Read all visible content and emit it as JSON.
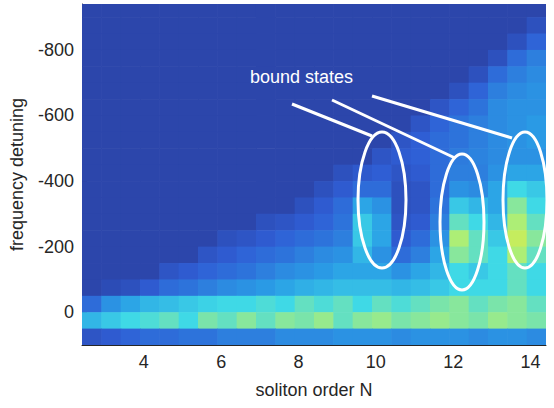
{
  "chart_data": {
    "type": "heatmap",
    "xlabel": "soliton order N",
    "ylabel": "frequency detuning",
    "annotation": "bound states",
    "x": [
      2.65,
      3.15,
      3.65,
      4.15,
      4.65,
      5.15,
      5.65,
      6.15,
      6.65,
      7.15,
      7.65,
      8.15,
      8.65,
      9.15,
      9.65,
      10.15,
      10.65,
      11.15,
      11.65,
      12.15,
      12.65,
      13.15,
      13.65,
      14.15
    ],
    "y": [
      -925,
      -875,
      -825,
      -775,
      -725,
      -675,
      -625,
      -575,
      -525,
      -475,
      -425,
      -375,
      -325,
      -275,
      -225,
      -175,
      -125,
      -75,
      -25,
      25,
      75
    ],
    "z": [
      [
        0.05,
        0.05,
        0.05,
        0.05,
        0.05,
        0.05,
        0.05,
        0.05,
        0.05,
        0.05,
        0.05,
        0.05,
        0.05,
        0.05,
        0.05,
        0.05,
        0.05,
        0.05,
        0.05,
        0.05,
        0.05,
        0.05,
        0.05,
        0.05
      ],
      [
        0.05,
        0.05,
        0.05,
        0.05,
        0.05,
        0.05,
        0.05,
        0.05,
        0.05,
        0.05,
        0.05,
        0.05,
        0.05,
        0.05,
        0.05,
        0.05,
        0.05,
        0.05,
        0.05,
        0.05,
        0.05,
        0.05,
        0.05,
        0.1
      ],
      [
        0.05,
        0.05,
        0.05,
        0.05,
        0.05,
        0.05,
        0.05,
        0.05,
        0.05,
        0.05,
        0.05,
        0.05,
        0.05,
        0.05,
        0.05,
        0.05,
        0.05,
        0.05,
        0.05,
        0.05,
        0.05,
        0.05,
        0.1,
        0.18
      ],
      [
        0.05,
        0.05,
        0.05,
        0.05,
        0.05,
        0.05,
        0.05,
        0.05,
        0.05,
        0.05,
        0.05,
        0.05,
        0.05,
        0.05,
        0.05,
        0.05,
        0.05,
        0.05,
        0.05,
        0.05,
        0.05,
        0.1,
        0.2,
        0.25
      ],
      [
        0.05,
        0.05,
        0.05,
        0.05,
        0.05,
        0.05,
        0.05,
        0.05,
        0.05,
        0.05,
        0.05,
        0.05,
        0.05,
        0.05,
        0.05,
        0.05,
        0.05,
        0.05,
        0.05,
        0.05,
        0.1,
        0.2,
        0.25,
        0.28
      ],
      [
        0.05,
        0.05,
        0.05,
        0.05,
        0.05,
        0.05,
        0.05,
        0.05,
        0.05,
        0.05,
        0.05,
        0.05,
        0.05,
        0.05,
        0.05,
        0.05,
        0.05,
        0.05,
        0.05,
        0.1,
        0.18,
        0.25,
        0.28,
        0.3
      ],
      [
        0.05,
        0.05,
        0.05,
        0.05,
        0.05,
        0.05,
        0.05,
        0.05,
        0.05,
        0.05,
        0.05,
        0.05,
        0.05,
        0.05,
        0.05,
        0.05,
        0.05,
        0.05,
        0.12,
        0.18,
        0.22,
        0.28,
        0.3,
        0.3
      ],
      [
        0.05,
        0.05,
        0.05,
        0.05,
        0.05,
        0.05,
        0.05,
        0.05,
        0.05,
        0.05,
        0.05,
        0.05,
        0.05,
        0.05,
        0.05,
        0.05,
        0.05,
        0.12,
        0.18,
        0.22,
        0.25,
        0.28,
        0.3,
        0.32
      ],
      [
        0.05,
        0.05,
        0.05,
        0.05,
        0.05,
        0.05,
        0.05,
        0.05,
        0.05,
        0.05,
        0.05,
        0.05,
        0.05,
        0.05,
        0.05,
        0.05,
        0.12,
        0.16,
        0.2,
        0.22,
        0.25,
        0.28,
        0.3,
        0.32
      ],
      [
        0.05,
        0.05,
        0.05,
        0.05,
        0.05,
        0.05,
        0.05,
        0.05,
        0.05,
        0.05,
        0.05,
        0.05,
        0.05,
        0.05,
        0.05,
        0.12,
        0.15,
        0.17,
        0.2,
        0.24,
        0.26,
        0.28,
        0.3,
        0.3
      ],
      [
        0.05,
        0.05,
        0.05,
        0.05,
        0.05,
        0.05,
        0.05,
        0.05,
        0.05,
        0.05,
        0.05,
        0.05,
        0.05,
        0.1,
        0.14,
        0.16,
        0.12,
        0.15,
        0.2,
        0.25,
        0.25,
        0.3,
        0.35,
        0.35
      ],
      [
        0.05,
        0.05,
        0.05,
        0.05,
        0.05,
        0.05,
        0.05,
        0.05,
        0.05,
        0.05,
        0.05,
        0.05,
        0.1,
        0.15,
        0.2,
        0.2,
        0.1,
        0.12,
        0.2,
        0.3,
        0.28,
        0.35,
        0.5,
        0.45
      ],
      [
        0.05,
        0.05,
        0.05,
        0.05,
        0.05,
        0.05,
        0.05,
        0.05,
        0.05,
        0.05,
        0.05,
        0.1,
        0.15,
        0.2,
        0.35,
        0.3,
        0.1,
        0.12,
        0.22,
        0.45,
        0.4,
        0.35,
        0.6,
        0.5
      ],
      [
        0.05,
        0.05,
        0.05,
        0.05,
        0.05,
        0.05,
        0.05,
        0.05,
        0.05,
        0.1,
        0.12,
        0.15,
        0.18,
        0.22,
        0.45,
        0.35,
        0.12,
        0.15,
        0.25,
        0.55,
        0.5,
        0.4,
        0.65,
        0.55
      ],
      [
        0.05,
        0.05,
        0.05,
        0.05,
        0.05,
        0.05,
        0.05,
        0.1,
        0.12,
        0.15,
        0.18,
        0.2,
        0.22,
        0.25,
        0.45,
        0.35,
        0.15,
        0.2,
        0.3,
        0.65,
        0.55,
        0.45,
        0.7,
        0.6
      ],
      [
        0.05,
        0.05,
        0.05,
        0.05,
        0.05,
        0.05,
        0.12,
        0.15,
        0.18,
        0.2,
        0.22,
        0.25,
        0.28,
        0.3,
        0.4,
        0.3,
        0.2,
        0.25,
        0.35,
        0.6,
        0.55,
        0.5,
        0.65,
        0.55
      ],
      [
        0.05,
        0.05,
        0.05,
        0.05,
        0.12,
        0.15,
        0.18,
        0.2,
        0.22,
        0.25,
        0.28,
        0.3,
        0.32,
        0.35,
        0.35,
        0.35,
        0.3,
        0.35,
        0.4,
        0.5,
        0.45,
        0.5,
        0.55,
        0.5
      ],
      [
        0.05,
        0.08,
        0.1,
        0.15,
        0.2,
        0.22,
        0.25,
        0.28,
        0.3,
        0.32,
        0.35,
        0.38,
        0.4,
        0.42,
        0.42,
        0.42,
        0.4,
        0.42,
        0.45,
        0.5,
        0.5,
        0.5,
        0.55,
        0.5
      ],
      [
        0.2,
        0.3,
        0.35,
        0.4,
        0.42,
        0.45,
        0.48,
        0.5,
        0.5,
        0.52,
        0.5,
        0.55,
        0.52,
        0.55,
        0.5,
        0.55,
        0.52,
        0.55,
        0.58,
        0.6,
        0.55,
        0.58,
        0.6,
        0.55
      ],
      [
        0.4,
        0.45,
        0.5,
        0.52,
        0.55,
        0.5,
        0.58,
        0.55,
        0.6,
        0.55,
        0.6,
        0.58,
        0.62,
        0.55,
        0.6,
        0.62,
        0.58,
        0.6,
        0.62,
        0.6,
        0.58,
        0.62,
        0.6,
        0.58
      ],
      [
        0.12,
        0.15,
        0.18,
        0.2,
        0.2,
        0.22,
        0.22,
        0.25,
        0.25,
        0.25,
        0.28,
        0.28,
        0.28,
        0.3,
        0.3,
        0.3,
        0.28,
        0.3,
        0.3,
        0.3,
        0.28,
        0.3,
        0.3,
        0.28
      ]
    ],
    "zlim": [
      0,
      1
    ],
    "xlim": [
      2.4,
      14.4
    ],
    "xticks": [
      4,
      6,
      8,
      10,
      12,
      14
    ],
    "ylim": [
      -940,
      100
    ],
    "yticks": [
      -800,
      -600,
      -400,
      -200,
      0
    ],
    "grid": false
  }
}
